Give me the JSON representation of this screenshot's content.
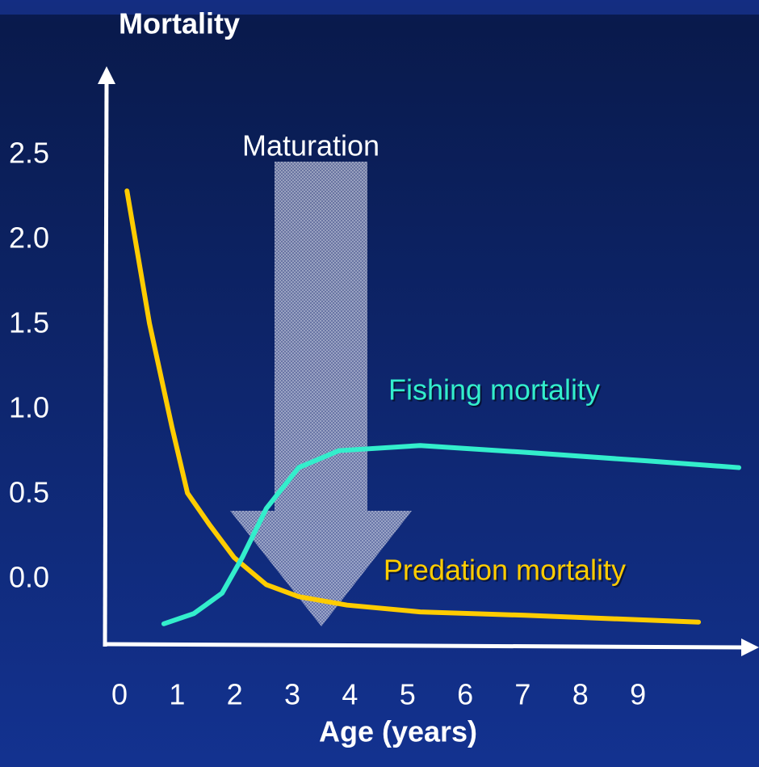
{
  "chart_data": {
    "type": "line",
    "title": "Mortality",
    "x_label": "Age (years)",
    "annotation": "Maturation",
    "xlim": [
      -0.28,
      11.1
    ],
    "ylim": [
      -0.38,
      3.01
    ],
    "xticks": [
      0,
      1,
      2,
      3,
      4,
      5,
      6,
      7,
      8,
      9
    ],
    "yticks": [
      {
        "value": 2.5,
        "label": "2.5"
      },
      {
        "value": 2.0,
        "label": "2.0"
      },
      {
        "value": 1.5,
        "label": "1.5"
      },
      {
        "value": 1.0,
        "label": "1.0"
      },
      {
        "value": 0.5,
        "label": "0.5"
      },
      {
        "value": 0.0,
        "label": "0.0"
      }
    ],
    "series": [
      {
        "name": "Predation mortality",
        "color": "#ffcc00",
        "x": [
          0.13,
          0.52,
          0.91,
          1.18,
          1.57,
          1.99,
          2.55,
          3.11,
          3.95,
          5.22,
          7.04,
          10.05
        ],
        "values": [
          2.29,
          1.51,
          0.9,
          0.51,
          0.32,
          0.13,
          -0.03,
          -0.1,
          -0.15,
          -0.19,
          -0.21,
          -0.25
        ]
      },
      {
        "name": "Fishing mortality",
        "color": "#33eecc",
        "x": [
          0.77,
          1.29,
          1.78,
          2.13,
          2.55,
          3.11,
          3.81,
          5.22,
          7.04,
          9.14,
          10.75
        ],
        "values": [
          -0.26,
          -0.2,
          -0.08,
          0.13,
          0.42,
          0.66,
          0.76,
          0.79,
          0.75,
          0.7,
          0.66
        ]
      }
    ]
  }
}
